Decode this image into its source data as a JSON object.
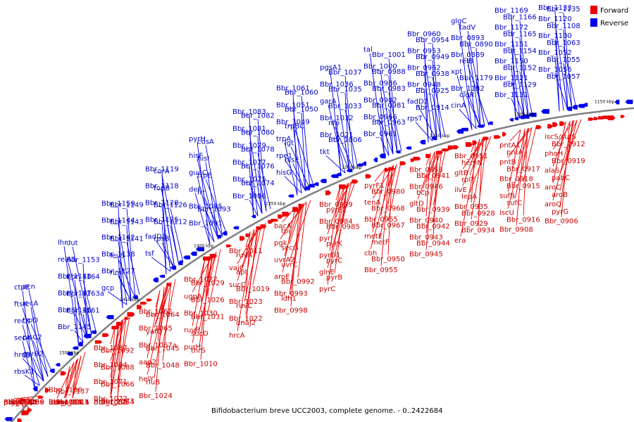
{
  "caption": "Bifidobacterium breve UCC2003, complete genome. - 0..2422684",
  "legend": [
    {
      "label": "Forward",
      "color": "#ee0000"
    },
    {
      "label": "Reverse",
      "color": "#0000ee"
    }
  ],
  "colors": {
    "forward": "#ee0000",
    "reverse": "#0000ee",
    "forward_text": "#cc0000",
    "reverse_text": "#0000cc",
    "backbone": "#808080"
  },
  "scale_ticks": [
    {
      "label": "1500 kbp",
      "at": 1500
    },
    {
      "label": "1450 kbp",
      "at": 1450
    },
    {
      "label": "1400 kbp",
      "at": 1400
    },
    {
      "label": "1350 kbp",
      "at": 1350
    },
    {
      "label": "1300 kbp",
      "at": 1300
    },
    {
      "label": "1250 kbp",
      "at": 1250
    },
    {
      "label": "1200 kbp",
      "at": 1200
    },
    {
      "label": "1150 kbp",
      "at": 1150
    }
  ],
  "reverse_genes": [
    "ctpE",
    "acn",
    "ftsK",
    "recA",
    "recX",
    "trpD",
    "secA",
    "plsC2",
    "hrdB",
    "gyrB2",
    "rbsK1",
    "lhr",
    "dut",
    "relA1",
    "Bbr_1153",
    "Bbr_1148",
    "Bbr_1164",
    "Bbr_1147",
    "Bbr_1163a",
    "Bbr_1146",
    "Bbr_1161",
    "Bbr_1145",
    "Bbr_1159",
    "Bbr_1149",
    "Bbr_1144",
    "Bbr_1143",
    "Bbr_1142",
    "Bbr_1141",
    "Bbr_1138",
    "leuS",
    "Bbr_1127",
    "riml",
    "gcp",
    "Bbr_1119",
    "corA",
    "Bbr_1118",
    "topB",
    "Bbr_1128",
    "Bbr_1126",
    "Bbr_1125",
    "Bbr_1112",
    "fadD3",
    "rpsB",
    "tsf",
    "pyrH",
    "cdsA",
    "hisF",
    "hisI",
    "guaC",
    "trpE",
    "def",
    "frr",
    "Bbr_1095",
    "Bbr_1093",
    "Bbr_1091",
    "Bbr_1083",
    "Bbr_1082",
    "Bbr_1081",
    "Bbr_1080",
    "Bbr_1079",
    "Bbr_1078",
    "Bbr_1077",
    "Bbr_1076",
    "Bbr_1075",
    "Bbr_1074",
    "Bbr_1086",
    "Bbr_1061",
    "Bbr_1060",
    "Bbr_1051",
    "Bbr_1050",
    "Bbr_1049",
    "trpBC",
    "trpA",
    "lgt",
    "rpe1",
    "hisE",
    "hisG",
    "pgsA1",
    "Bbr_1037",
    "Bbr_1036",
    "Bbr_1035",
    "garA",
    "Bbr_1033",
    "Bbr_1032",
    "nfo",
    "Bbr_1021",
    "Bbr_1006",
    "tkt",
    "tal",
    "Bbr_1001",
    "Bbr_1000",
    "Bbr_0988",
    "Bbr_0986",
    "Bbr_0983",
    "Bbr_0982",
    "Bbr_0981",
    "Bbr_0966",
    "Bbr_0963",
    "Bbr_0961",
    "Bbr_0960",
    "Bbr_0954",
    "Bbr_0953",
    "Bbr_0949",
    "Bbr_0962",
    "Bbr_0938",
    "Bbr_0948",
    "Bbr_0925",
    "fadD2",
    "Bbr_0914",
    "rpsT",
    "glgC",
    "tadV",
    "Bbr_0893",
    "Bbr_0890",
    "Bbr_0889",
    "relB",
    "xpt",
    "Bbr_1179",
    "Bbr_1182",
    "clgR",
    "cinA",
    "Bbr_1169",
    "Bbr_1166",
    "Bbr_1172",
    "Bbr_1165",
    "Bbr_1151",
    "Bbr_1154",
    "Bbr_1150",
    "Bbr_1152",
    "Bbr_1121",
    "Bbr_1129",
    "Bbr_1131",
    "Bbr_1133",
    "Bbr_1135",
    "Bbr_1120",
    "Bbr_1108",
    "Bbr_1100",
    "Bbr_1063",
    "Bbr_1052",
    "Bbr_1055",
    "Bbr_1056",
    "Bbr_1057"
  ],
  "forward_genes": [
    "Bbr_1194",
    "fic",
    "pknA2",
    "idsA",
    "Bbr_1160",
    "gyrA2",
    "Bbr_1155",
    "Bbr_1156",
    "Bbr_1140",
    "Bbr_1139",
    "Bbr_1134",
    "Bbr_1136",
    "Bbr_1137",
    "Bbr_1117",
    "Bbr_1115",
    "icdA",
    "Bbr_1111",
    "Bbr_1113",
    "Bbr_1114",
    "Bbr_1085",
    "aap3",
    "Bbr_1084",
    "Bbr_1087",
    "Bbr_1092",
    "Bbr_1094",
    "Bbr_1088",
    "Bbr_1071",
    "Bbr_1066",
    "Bbr_1072",
    "Bbr_1073",
    "Bbr_1053",
    "Bbr_1054",
    "Bbr_1058",
    "Bbr_1062",
    "Bbr_1064",
    "Bbr_1065",
    "yafQ",
    "Bbr_1067a",
    "Bbr_1045",
    "aap2",
    "Bbr_1048",
    "helY",
    "rluB",
    "Bbr_1024",
    "Bbr_1027",
    "Bbr_1029",
    "ugpA",
    "Bbr_1026",
    "Bbr_1030",
    "Bbr_1031",
    "ruvB",
    "sucD",
    "purH",
    "thrS",
    "Bbr_1010",
    "Bbr_1011",
    "ruvA",
    "vajC",
    "apt",
    "sucC",
    "Bbr_1019",
    "Bbr_1023",
    "ruvC",
    "Bbr_1022",
    "dnaJ2",
    "hrcA",
    "bacA",
    "tpi",
    "pgk",
    "secG",
    "uvrA2",
    "uvrC",
    "aroE",
    "Bbr_0992",
    "Bbr_0993",
    "ldh1",
    "Bbr_0998",
    "Bbr_0999",
    "pyrE2",
    "Bbr_0984",
    "Bbr_0985",
    "pyrI",
    "pyrK",
    "pyrD1",
    "pyrC",
    "glnE",
    "pyrB",
    "pyrC",
    "pyrF1",
    "Bbr_0980",
    "tenA",
    "Bbr_0968",
    "Bbr_0965",
    "Bbr_0967",
    "metE",
    "metF",
    "cbh",
    "Bbr_0950",
    "Bbr_0955",
    "Bbr_0958",
    "Bbr_0941",
    "Bbr_0946",
    "bcp",
    "gltD",
    "Bbr_0939",
    "Bbr_0940",
    "Bbr_0942",
    "Bbr_0943",
    "Bbr_0944",
    "Bbr_0945",
    "Bbr_0951",
    "hemN",
    "gltB",
    "rplY",
    "ilvE",
    "lepA",
    "Bbr_0935",
    "Bbr_0928",
    "Bbr_0929",
    "Bbr_0934",
    "era",
    "pntA1",
    "pntA",
    "pntB",
    "Bbr_0917",
    "Bbr_0918",
    "Bbr_0915",
    "sufB",
    "sufC",
    "iscU",
    "Bbr_0916",
    "Bbr_0908",
    "iscS/sufS",
    "Bbr_0912",
    "phoH",
    "Bbr_0919",
    "alaS",
    "pabC",
    "aroC",
    "aroB",
    "aroQ",
    "pyrG",
    "Bbr_0906"
  ]
}
